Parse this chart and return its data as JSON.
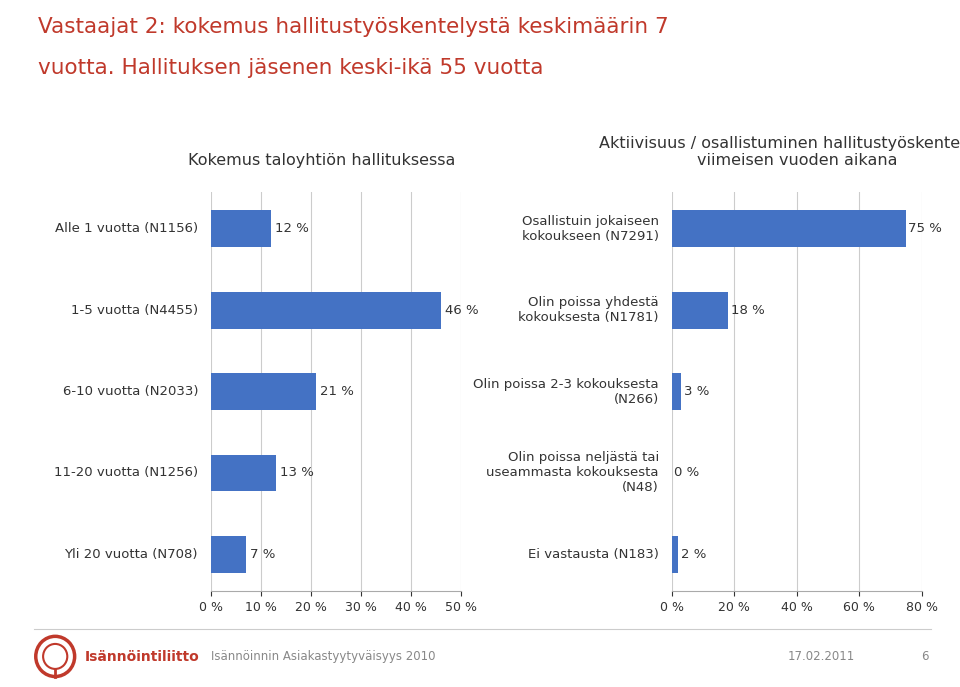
{
  "title_line1": "Vastaajat 2: kokemus hallitustyöskentelystä keskimäärin 7",
  "title_line2": "vuotta. Hallituksen jäsenen keski-ikä 55 vuotta",
  "title_color": "#c0392b",
  "left_subtitle": "Kokemus taloyhtiön hallituksessa",
  "right_subtitle": "Aktiivisuus / osallistuminen hallitustyöskentelyyn\nviimeisen vuoden aikana",
  "left_categories": [
    "Alle 1 vuotta (N1156)",
    "1-5 vuotta (N4455)",
    "6-10 vuotta (N2033)",
    "11-20 vuotta (N1256)",
    "Yli 20 vuotta (N708)"
  ],
  "left_values": [
    12,
    46,
    21,
    13,
    7
  ],
  "right_categories": [
    "Osallistuin jokaiseen\nkokoukseen (N7291)",
    "Olin poissa yhdestä\nkokouksesta (N1781)",
    "Olin poissa 2-3 kokouksesta\n(N266)",
    "Olin poissa neljästä tai\nuseammasta kokouksesta\n(N48)",
    "Ei vastausta (N183)"
  ],
  "right_values": [
    75,
    18,
    3,
    0,
    2
  ],
  "bar_color": "#4472c4",
  "left_xlim": [
    0,
    50
  ],
  "right_xlim": [
    0,
    80
  ],
  "left_xticks": [
    0,
    10,
    20,
    30,
    40,
    50
  ],
  "right_xticks": [
    0,
    20,
    40,
    60,
    80
  ],
  "left_xtick_labels": [
    "0 %",
    "10 %",
    "20 %",
    "30 %",
    "40 %",
    "50 %"
  ],
  "right_xtick_labels": [
    "0 %",
    "20 %",
    "40 %",
    "60 %",
    "80 %"
  ],
  "footer_center": "Isännöinnin Asiakastyytyväisyys 2010",
  "footer_date": "17.02.2011",
  "footer_page": "6",
  "bg_color": "#ffffff",
  "bar_height": 0.45,
  "grid_color": "#cccccc",
  "label_color": "#333333",
  "spine_color": "#aaaaaa"
}
